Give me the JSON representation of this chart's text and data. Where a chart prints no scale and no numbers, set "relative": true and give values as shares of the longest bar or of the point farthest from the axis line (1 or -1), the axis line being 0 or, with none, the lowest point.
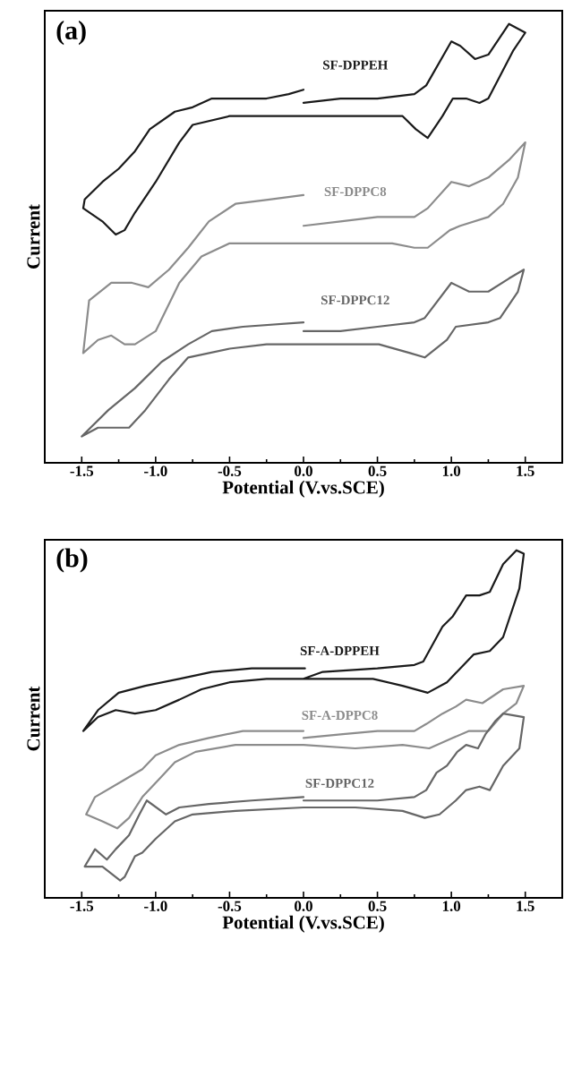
{
  "chart_data": [
    {
      "type": "line",
      "title": "(a)",
      "xlabel": "Potential (V.vs.SCE)",
      "ylabel": "Current",
      "relative": true,
      "xlim": [
        -1.75,
        1.75
      ],
      "xticks": [
        {
          "value": -1.5,
          "label": "-1.5"
        },
        {
          "value": -1.0,
          "label": "-1.0"
        },
        {
          "value": -0.5,
          "label": "-0.5"
        },
        {
          "value": 0.0,
          "label": "0.0"
        },
        {
          "value": 0.5,
          "label": "0.5"
        },
        {
          "value": 1.0,
          "label": "1.0"
        },
        {
          "value": 1.5,
          "label": "1.5"
        }
      ],
      "series": [
        {
          "name": "SF-DPPEH",
          "color": "#1a1a1a",
          "x": [
            0,
            0.25,
            0.5,
            0.75,
            0.83,
            1.0,
            1.06,
            1.16,
            1.25,
            1.39,
            1.5,
            1.42,
            1.25,
            1.19,
            1.1,
            1.01,
            0.94,
            0.84,
            0.76,
            0.67,
            -0.5,
            -0.75,
            -0.84,
            -1.0,
            -1.14,
            -1.21,
            -1.27,
            -1.36,
            -1.49,
            -1.48,
            -1.36,
            -1.25,
            -1.14,
            -1.04,
            -0.87,
            -0.75,
            -0.62,
            -0.25,
            -0.1,
            0
          ],
          "values": [
            0.82,
            0.83,
            0.83,
            0.84,
            0.86,
            0.96,
            0.95,
            0.92,
            0.93,
            1.0,
            0.98,
            0.94,
            0.83,
            0.82,
            0.83,
            0.83,
            0.79,
            0.74,
            0.76,
            0.79,
            0.79,
            0.77,
            0.73,
            0.64,
            0.57,
            0.53,
            0.52,
            0.55,
            0.58,
            0.6,
            0.64,
            0.67,
            0.71,
            0.76,
            0.8,
            0.81,
            0.83,
            0.83,
            0.84,
            0.85
          ]
        },
        {
          "name": "SF-DPPC8",
          "color": "#8c8c8c",
          "x": [
            0,
            0.25,
            0.5,
            0.75,
            0.84,
            1.0,
            1.12,
            1.25,
            1.39,
            1.5,
            1.45,
            1.35,
            1.25,
            1.06,
            0.99,
            0.84,
            0.75,
            0.6,
            -0.25,
            -0.5,
            -0.69,
            -0.84,
            -1.0,
            -1.14,
            -1.21,
            -1.3,
            -1.39,
            -1.49,
            -1.45,
            -1.3,
            -1.16,
            -1.05,
            -0.91,
            -0.78,
            -0.64,
            -0.46,
            -0.23,
            0
          ],
          "values": [
            0.54,
            0.55,
            0.56,
            0.56,
            0.58,
            0.64,
            0.63,
            0.65,
            0.69,
            0.73,
            0.65,
            0.59,
            0.56,
            0.54,
            0.53,
            0.49,
            0.49,
            0.5,
            0.5,
            0.5,
            0.47,
            0.41,
            0.3,
            0.27,
            0.27,
            0.29,
            0.28,
            0.25,
            0.37,
            0.41,
            0.41,
            0.4,
            0.44,
            0.49,
            0.55,
            0.59,
            0.6,
            0.61
          ]
        },
        {
          "name": "SF-DPPC12",
          "color": "#666666",
          "x": [
            0,
            0.25,
            0.5,
            0.75,
            0.82,
            1.0,
            1.12,
            1.25,
            1.39,
            1.49,
            1.45,
            1.33,
            1.25,
            1.03,
            0.97,
            0.82,
            0.72,
            0.51,
            -0.25,
            -0.5,
            -0.78,
            -0.91,
            -1.07,
            -1.18,
            -1.27,
            -1.39,
            -1.5,
            -1.32,
            -1.14,
            -0.96,
            -0.78,
            -0.62,
            -0.41,
            0
          ],
          "values": [
            0.3,
            0.3,
            0.31,
            0.32,
            0.33,
            0.41,
            0.39,
            0.39,
            0.42,
            0.44,
            0.39,
            0.33,
            0.32,
            0.31,
            0.28,
            0.24,
            0.25,
            0.27,
            0.27,
            0.26,
            0.24,
            0.19,
            0.12,
            0.08,
            0.08,
            0.08,
            0.06,
            0.12,
            0.17,
            0.23,
            0.27,
            0.3,
            0.31,
            0.32
          ]
        }
      ]
    },
    {
      "type": "line",
      "title": "(b)",
      "xlabel": "Potential (V.vs.SCE)",
      "ylabel": "Current",
      "relative": true,
      "xlim": [
        -1.75,
        1.75
      ],
      "xticks": [
        {
          "value": -1.5,
          "label": "-1.5"
        },
        {
          "value": -1.0,
          "label": "-1.0"
        },
        {
          "value": -0.5,
          "label": "-0.5"
        },
        {
          "value": 0.0,
          "label": "0.0"
        },
        {
          "value": 0.5,
          "label": "0.5"
        },
        {
          "value": 1.0,
          "label": "1.0"
        },
        {
          "value": 1.5,
          "label": "1.5"
        }
      ],
      "series": [
        {
          "name": "SF-A-DPPEH",
          "color": "#1a1a1a",
          "x": [
            0,
            0.13,
            0.5,
            0.75,
            0.81,
            0.94,
            1.01,
            1.1,
            1.19,
            1.26,
            1.35,
            1.44,
            1.49,
            1.46,
            1.35,
            1.26,
            1.15,
            1.06,
            0.97,
            0.84,
            0.67,
            0.47,
            0.25,
            -0.25,
            -0.5,
            -0.69,
            -0.84,
            -1.0,
            -1.14,
            -1.27,
            -1.39,
            -1.49,
            -1.39,
            -1.25,
            -1.07,
            -0.84,
            -0.62,
            -0.35,
            0.01
          ],
          "values": [
            0.63,
            0.65,
            0.66,
            0.67,
            0.68,
            0.78,
            0.81,
            0.87,
            0.87,
            0.88,
            0.96,
            1.0,
            0.99,
            0.89,
            0.75,
            0.71,
            0.7,
            0.66,
            0.62,
            0.59,
            0.61,
            0.63,
            0.63,
            0.63,
            0.62,
            0.6,
            0.57,
            0.54,
            0.53,
            0.54,
            0.52,
            0.48,
            0.54,
            0.59,
            0.61,
            0.63,
            0.65,
            0.66,
            0.66
          ]
        },
        {
          "name": "SF-A-DPPC8",
          "color": "#8c8c8c",
          "x": [
            0,
            0.25,
            0.5,
            0.75,
            0.83,
            0.94,
            1.03,
            1.1,
            1.21,
            1.28,
            1.35,
            1.49,
            1.44,
            1.35,
            1.25,
            1.12,
            1.01,
            0.85,
            0.67,
            0.35,
            0,
            -0.46,
            -0.73,
            -0.87,
            -0.98,
            -1.09,
            -1.18,
            -1.26,
            -1.36,
            -1.47,
            -1.41,
            -1.21,
            -1.09,
            -1.0,
            -0.84,
            -0.64,
            -0.41,
            0
          ],
          "values": [
            0.46,
            0.47,
            0.48,
            0.48,
            0.5,
            0.53,
            0.55,
            0.57,
            0.56,
            0.58,
            0.6,
            0.61,
            0.56,
            0.53,
            0.48,
            0.48,
            0.46,
            0.43,
            0.44,
            0.43,
            0.44,
            0.44,
            0.42,
            0.39,
            0.34,
            0.29,
            0.23,
            0.2,
            0.22,
            0.24,
            0.29,
            0.34,
            0.37,
            0.41,
            0.44,
            0.46,
            0.48,
            0.48
          ]
        },
        {
          "name": "SF-DPPC12",
          "color": "#666666",
          "x": [
            0,
            0.25,
            0.5,
            0.75,
            0.83,
            0.9,
            0.97,
            1.04,
            1.1,
            1.18,
            1.23,
            1.3,
            1.35,
            1.49,
            1.46,
            1.35,
            1.26,
            1.19,
            1.1,
            1.03,
            0.92,
            0.82,
            0.67,
            0.35,
            0,
            -0.46,
            -0.75,
            -0.87,
            -1.0,
            -1.09,
            -1.14,
            -1.21,
            -1.24,
            -1.36,
            -1.48,
            -1.41,
            -1.33,
            -1.27,
            -1.18,
            -1.11,
            -1.06,
            -0.93,
            -0.84,
            -0.64,
            -0.35,
            0
          ],
          "values": [
            0.28,
            0.28,
            0.28,
            0.29,
            0.31,
            0.36,
            0.38,
            0.42,
            0.44,
            0.43,
            0.47,
            0.51,
            0.53,
            0.52,
            0.43,
            0.38,
            0.31,
            0.32,
            0.31,
            0.28,
            0.24,
            0.23,
            0.25,
            0.26,
            0.26,
            0.25,
            0.24,
            0.22,
            0.17,
            0.13,
            0.12,
            0.06,
            0.05,
            0.09,
            0.09,
            0.14,
            0.11,
            0.14,
            0.18,
            0.24,
            0.28,
            0.24,
            0.26,
            0.27,
            0.28,
            0.29
          ]
        }
      ]
    }
  ]
}
